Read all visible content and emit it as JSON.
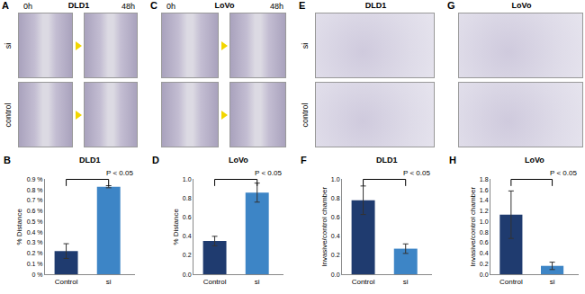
{
  "image_panels": [
    {
      "panel": "A",
      "title": "DLD1",
      "columns": [
        "0h",
        "48h"
      ],
      "rows": [
        "si",
        "control"
      ]
    },
    {
      "panel": "C",
      "title": "LoVo",
      "columns": [
        "0h",
        "48h"
      ]
    },
    {
      "panel": "E",
      "title": "DLD1",
      "rows": [
        "si",
        "control"
      ]
    },
    {
      "panel": "G",
      "title": "LoVo"
    }
  ],
  "chart_data": [
    {
      "type": "bar",
      "panel": "B",
      "title": "DLD1",
      "y_label": "% Distance",
      "categories": [
        "Control",
        "si"
      ],
      "values": [
        0.22,
        0.83
      ],
      "errors": [
        0.07,
        0.01
      ],
      "colors": [
        "#1f3b6f",
        "#3d85c6"
      ],
      "ylim": [
        0,
        0.9
      ],
      "yticks": [
        {
          "value": 0,
          "label": "0 %"
        },
        {
          "value": 0.1,
          "label": "0.1 %"
        },
        {
          "value": 0.2,
          "label": "0.2 %"
        },
        {
          "value": 0.3,
          "label": "0.3 %"
        },
        {
          "value": 0.4,
          "label": "0.4 %"
        },
        {
          "value": 0.5,
          "label": "0.5 %"
        },
        {
          "value": 0.6,
          "label": "0.6 %"
        },
        {
          "value": 0.7,
          "label": "0.7 %"
        },
        {
          "value": 0.8,
          "label": "0.8 %"
        },
        {
          "value": 0.9,
          "label": "0.9 %"
        }
      ],
      "annotations": [
        "P < 0.05"
      ]
    },
    {
      "type": "bar",
      "panel": "D",
      "title": "LoVo",
      "y_label": "% Distance",
      "categories": [
        "Control",
        "si"
      ],
      "values": [
        0.35,
        0.86
      ],
      "errors": [
        0.05,
        0.1
      ],
      "colors": [
        "#1f3b6f",
        "#3d85c6"
      ],
      "ylim": [
        0,
        1.0
      ],
      "yticks": [
        {
          "value": 0,
          "label": "0.0"
        },
        {
          "value": 0.2,
          "label": "0.2"
        },
        {
          "value": 0.4,
          "label": "0.4"
        },
        {
          "value": 0.6,
          "label": "0.6"
        },
        {
          "value": 0.8,
          "label": "0.8"
        },
        {
          "value": 1.0,
          "label": "1.0"
        }
      ],
      "annotations": [
        "P < 0.05"
      ]
    },
    {
      "type": "bar",
      "panel": "F",
      "title": "DLD1",
      "y_label": "Invasive/control chamber",
      "categories": [
        "Control",
        "si"
      ],
      "values": [
        0.78,
        0.27
      ],
      "errors": [
        0.15,
        0.05
      ],
      "colors": [
        "#1f3b6f",
        "#3d85c6"
      ],
      "ylim": [
        0,
        1.0
      ],
      "yticks": [
        {
          "value": 0,
          "label": "0.0"
        },
        {
          "value": 0.2,
          "label": "0.2"
        },
        {
          "value": 0.4,
          "label": "0.4"
        },
        {
          "value": 0.6,
          "label": "0.6"
        },
        {
          "value": 0.8,
          "label": "0.8"
        },
        {
          "value": 1.0,
          "label": "1.0"
        }
      ],
      "annotations": [
        "P < 0.05"
      ]
    },
    {
      "type": "bar",
      "panel": "H",
      "title": "LoVo",
      "y_label": "Invasive/control chamber",
      "categories": [
        "Control",
        "si"
      ],
      "values": [
        1.13,
        0.16
      ],
      "errors": [
        0.45,
        0.07
      ],
      "colors": [
        "#1f3b6f",
        "#3d85c6"
      ],
      "ylim": [
        0,
        1.8
      ],
      "yticks": [
        {
          "value": 0,
          "label": "0.0"
        },
        {
          "value": 0.2,
          "label": "0.2"
        },
        {
          "value": 0.4,
          "label": "0.4"
        },
        {
          "value": 0.6,
          "label": "0.6"
        },
        {
          "value": 0.8,
          "label": "0.8"
        },
        {
          "value": 1.0,
          "label": "1.0"
        },
        {
          "value": 1.2,
          "label": "1.2"
        },
        {
          "value": 1.4,
          "label": "1.4"
        },
        {
          "value": 1.6,
          "label": "1.6"
        },
        {
          "value": 1.8,
          "label": "1.8"
        }
      ],
      "annotations": [
        "P < 0.05"
      ]
    }
  ]
}
